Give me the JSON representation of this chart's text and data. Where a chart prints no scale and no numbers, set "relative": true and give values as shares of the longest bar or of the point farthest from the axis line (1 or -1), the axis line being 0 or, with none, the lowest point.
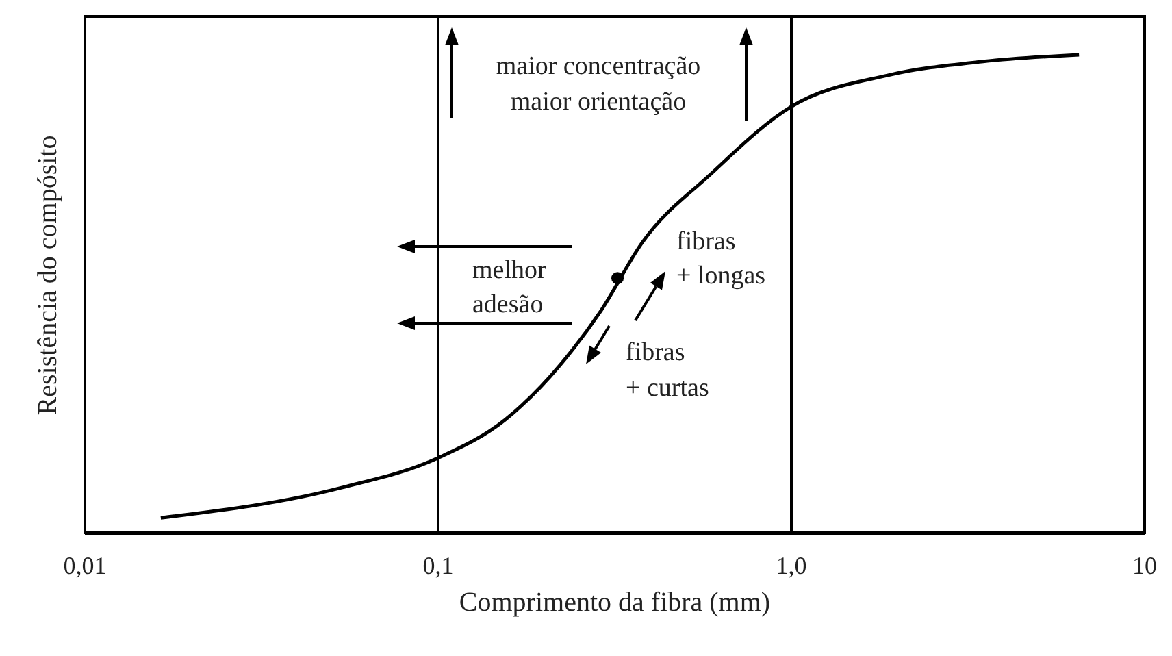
{
  "chart_data": {
    "type": "line",
    "xlabel": "Comprimento da fibra (mm)",
    "ylabel": "Resistência do compósito",
    "relative": true,
    "log": "x",
    "xlim": [
      0.01,
      10
    ],
    "xticks": [
      {
        "value": 0.01,
        "label": "0,01"
      },
      {
        "value": 0.1,
        "label": "0,1"
      },
      {
        "value": 1,
        "label": "1,0"
      },
      10
    ],
    "ref_lines": [
      {
        "axis": "x",
        "value": 0.1,
        "color": "#000000"
      },
      {
        "axis": "x",
        "value": 1,
        "color": "#000000"
      }
    ],
    "series": [
      {
        "color": "#000000",
        "marker": "none",
        "line_style": "solid",
        "x": [
          0.0164,
          0.0533,
          0.1,
          0.155,
          0.221,
          0.289,
          0.378,
          0.589,
          1.0,
          1.87,
          3.49,
          6.52
        ],
        "values": [
          0.034,
          0.097,
          0.159,
          0.239,
          0.352,
          0.466,
          0.608,
          0.75,
          0.892,
          0.957,
          0.986,
          1
        ]
      },
      {
        "type": "scatter",
        "color": "#000000",
        "marker": "circle",
        "x": [
          0.322
        ],
        "values": [
          0.534
        ]
      }
    ],
    "annotations": [
      "maior concentração\nmaior orientação",
      "melhor\nadesão",
      "fibras\n+ longas",
      "fibras\n+ curtas"
    ]
  }
}
